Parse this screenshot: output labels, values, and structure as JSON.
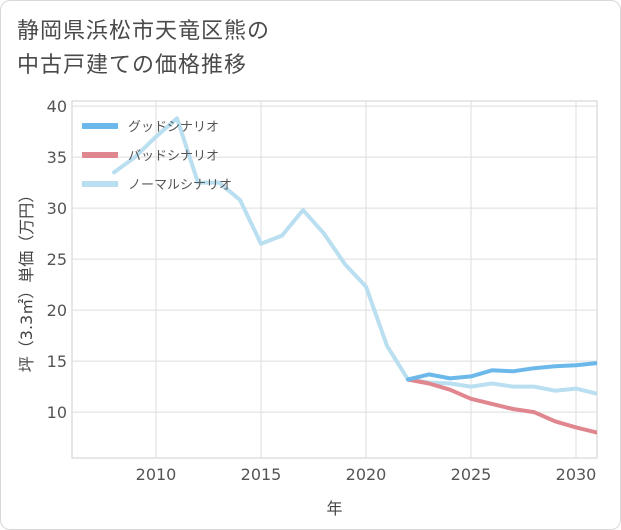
{
  "title_lines": [
    "静岡県浜松市天竜区熊の",
    "中古戸建ての価格推移"
  ],
  "chart_data": {
    "type": "line",
    "xlabel": "年",
    "ylabel": "坪（3.3㎡）単価（万円）",
    "xlim": [
      2006,
      2031
    ],
    "ylim": [
      5.5,
      40.5
    ],
    "xticks": [
      2010,
      2015,
      2020,
      2025,
      2030
    ],
    "yticks": [
      10,
      15,
      20,
      25,
      30,
      35,
      40
    ],
    "grid": true,
    "legend_position": "top-left",
    "series": [
      {
        "name": "グッドシナリオ",
        "color": "#6cb8ea",
        "x": [
          2022,
          2023,
          2024,
          2025,
          2026,
          2027,
          2028,
          2029,
          2030,
          2031
        ],
        "y": [
          13.2,
          13.7,
          13.3,
          13.5,
          14.1,
          14.0,
          14.3,
          14.5,
          14.6,
          14.8
        ]
      },
      {
        "name": "バッドシナリオ",
        "color": "#e0868e",
        "x": [
          2022,
          2023,
          2024,
          2025,
          2026,
          2027,
          2028,
          2029,
          2030,
          2031
        ],
        "y": [
          13.2,
          12.8,
          12.2,
          11.3,
          10.8,
          10.3,
          10.0,
          9.1,
          8.5,
          8.0
        ]
      },
      {
        "name": "ノーマルシナリオ",
        "color": "#b9dff0",
        "x": [
          2008,
          2009,
          2010,
          2011,
          2012,
          2013,
          2014,
          2015,
          2016,
          2017,
          2018,
          2019,
          2020,
          2021,
          2022,
          2023,
          2024,
          2025,
          2026,
          2027,
          2028,
          2029,
          2030,
          2031
        ],
        "y": [
          33.5,
          35.0,
          37.0,
          38.8,
          32.5,
          32.5,
          30.8,
          26.5,
          27.3,
          29.8,
          27.5,
          24.5,
          22.3,
          16.5,
          13.2,
          12.9,
          12.8,
          12.5,
          12.8,
          12.5,
          12.5,
          12.1,
          12.3,
          11.8
        ]
      }
    ]
  }
}
